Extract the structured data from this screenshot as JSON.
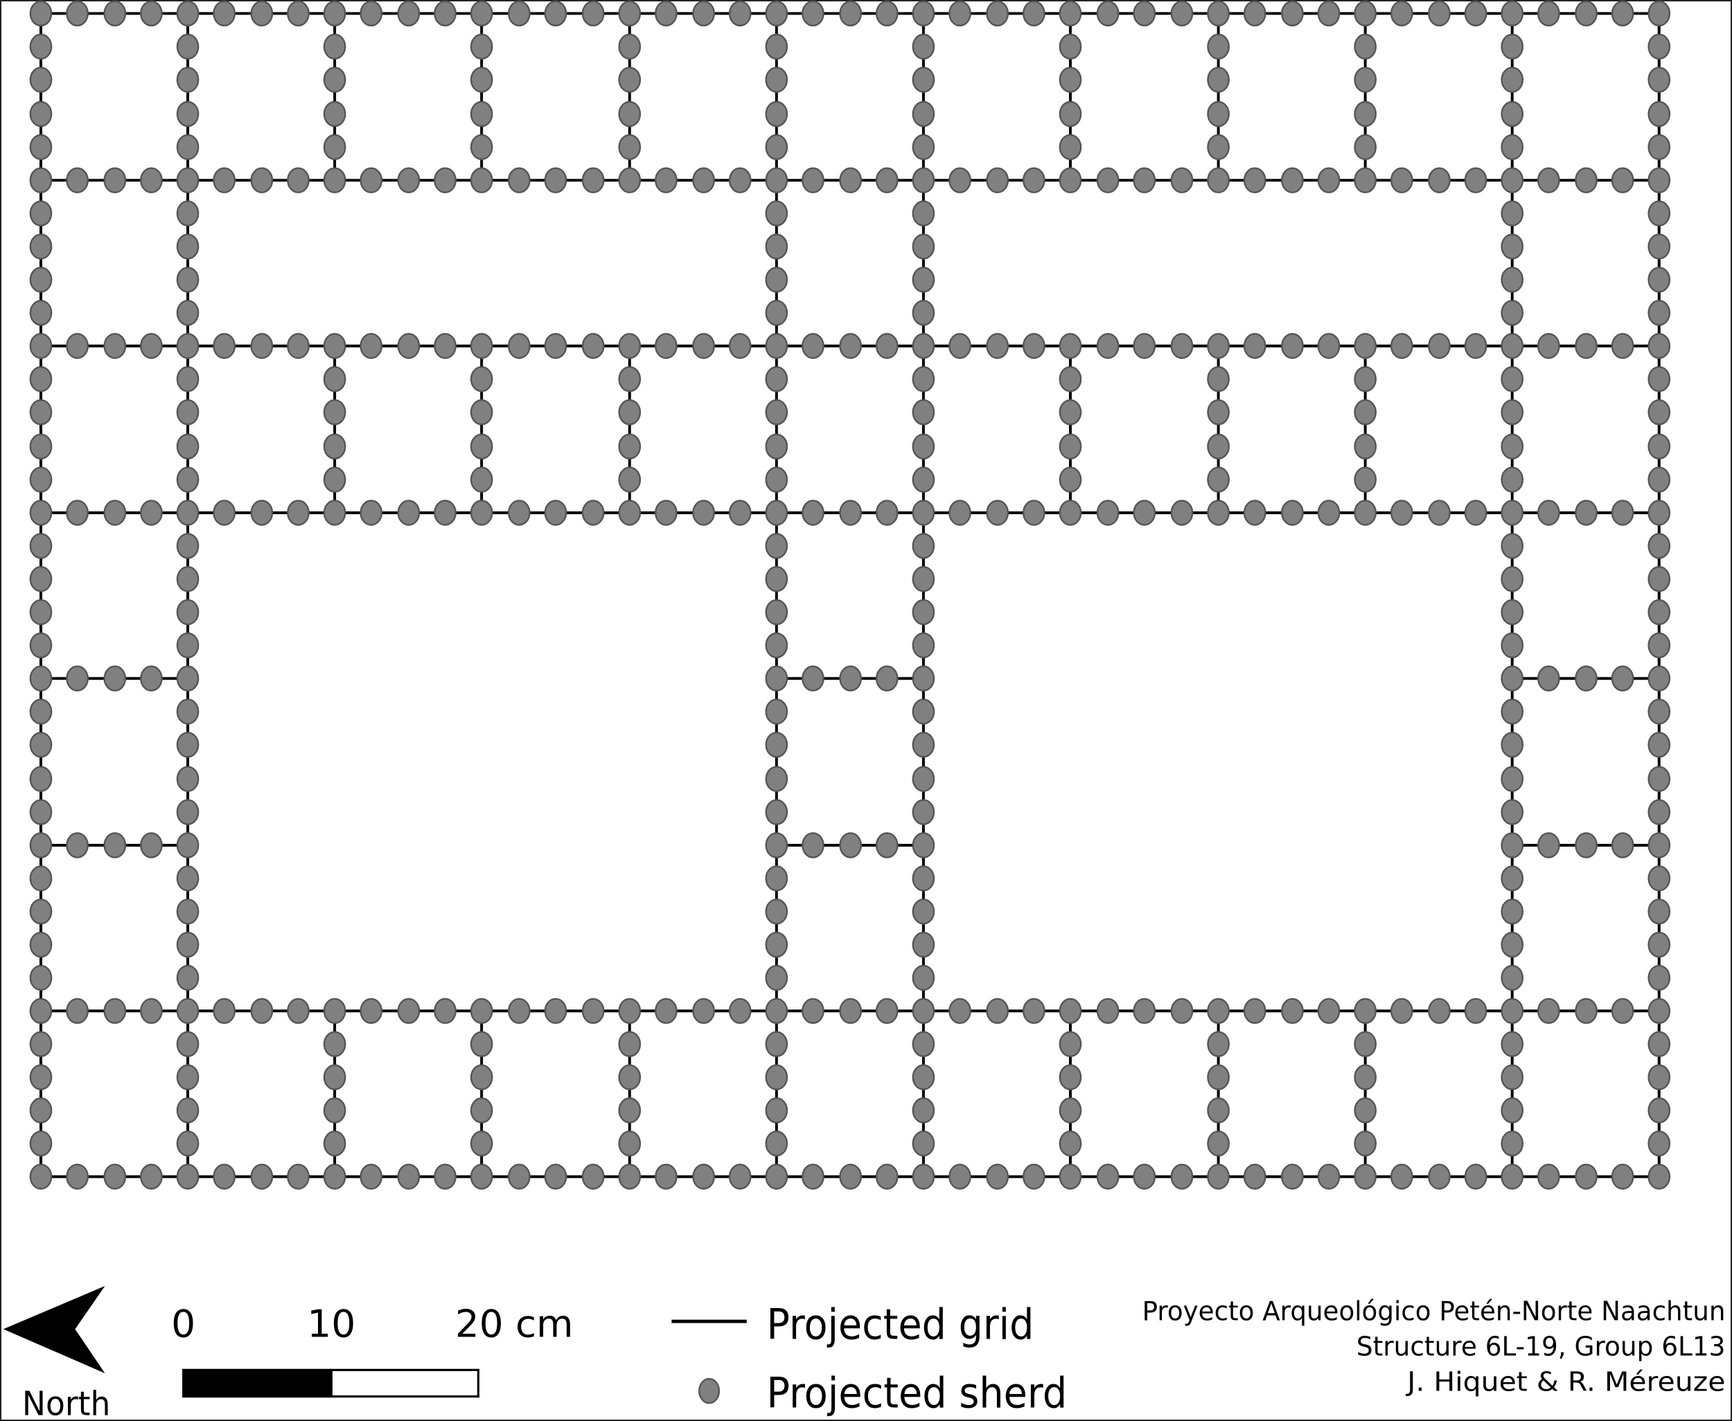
{
  "legend": {
    "grid_label": "Projected grid",
    "sherd_label": "Projected sherd",
    "grid_line_color": "#000000",
    "sherd_fill_color": "#808080",
    "sherd_stroke_color": "#555555"
  },
  "scale_bar": {
    "ticks": [
      "0",
      "10",
      "20 cm"
    ]
  },
  "north_arrow": {
    "label": "North",
    "icon": "north-arrow-icon"
  },
  "credits": {
    "project": "Proyecto Arqueológico Petén-Norte Naachtun",
    "structure": "Structure 6L-19, Group 6L13",
    "authors": "J. Hiquet & R. Méreuze"
  }
}
